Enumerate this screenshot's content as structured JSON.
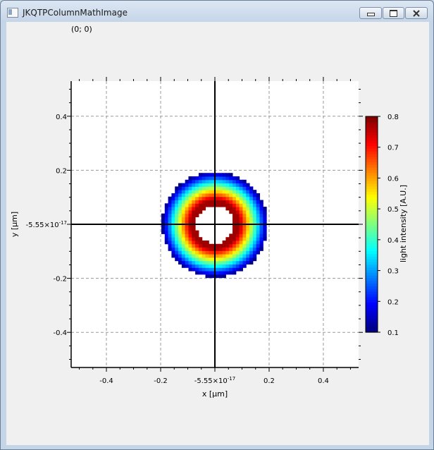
{
  "window": {
    "title": "JKQTPColumnMathImage"
  },
  "coordinate_readout": "(0; 0)",
  "chart_data": {
    "type": "heatmap",
    "description_of_values": "ring-shaped intensity distribution centred at origin",
    "xlabel": "x [µm]",
    "ylabel": "y [µm]",
    "xlim": [
      -0.53,
      0.53
    ],
    "ylim": [
      -0.53,
      0.53
    ],
    "x_ticks": [
      "-0.4",
      "-0.2",
      "-5.55x10-17",
      "0.2",
      "0.4"
    ],
    "y_ticks": [
      "0.4",
      "0.2",
      "-5.55x10-17",
      "-0.2",
      "-0.4"
    ],
    "grid": true,
    "crosshair": {
      "x": 0,
      "y": 0
    },
    "colorbar": {
      "label": "light intensity [A.U.]",
      "range": [
        0.1,
        0.8
      ],
      "ticks": [
        "0.8",
        "0.7",
        "0.6",
        "0.5",
        "0.4",
        "0.3",
        "0.2",
        "0.1"
      ],
      "colormap": "jet"
    },
    "ring": {
      "inner_radius": 0.07,
      "peak_radius": 0.09,
      "outer_radius": 0.195
    }
  },
  "colors": {
    "grid": "#9a9a9a",
    "axis": "#000000",
    "plot_background": "#ffffff"
  }
}
